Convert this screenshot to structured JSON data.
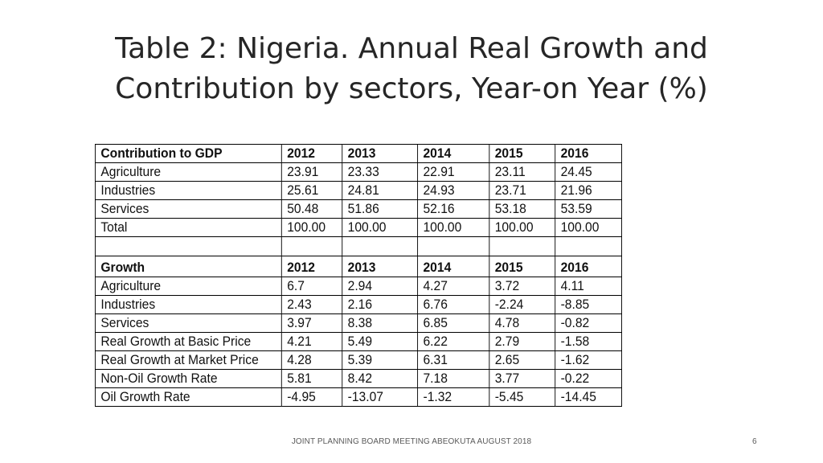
{
  "title": {
    "line1": "Table 2: Nigeria. Annual Real Growth and",
    "line2": "Contribution by sectors, Year-on Year (%)"
  },
  "contribution": {
    "header": [
      "Contribution to GDP",
      "2012",
      "2013",
      "2014",
      "2015",
      "2016"
    ],
    "rows": [
      [
        "Agriculture",
        "23.91",
        "23.33",
        "22.91",
        "23.11",
        "24.45"
      ],
      [
        "Industries",
        "25.61",
        "24.81",
        "24.93",
        "23.71",
        "21.96"
      ],
      [
        "Services",
        "50.48",
        "51.86",
        "52.16",
        "53.18",
        "53.59"
      ],
      [
        "Total",
        "100.00",
        "100.00",
        "100.00",
        "100.00",
        "100.00"
      ]
    ]
  },
  "growth": {
    "header": [
      "Growth",
      "2012",
      "2013",
      "2014",
      "2015",
      "2016"
    ],
    "rows": [
      [
        "Agriculture",
        "6.7",
        "2.94",
        "4.27",
        "3.72",
        "4.11"
      ],
      [
        "Industries",
        "2.43",
        "2.16",
        "6.76",
        "-2.24",
        "-8.85"
      ],
      [
        "Services",
        "3.97",
        "8.38",
        "6.85",
        "4.78",
        "-0.82"
      ],
      [
        "Real Growth at Basic Price",
        "4.21",
        "5.49",
        "6.22",
        "2.79",
        "-1.58"
      ],
      [
        "Real Growth at Market Price",
        "4.28",
        "5.39",
        "6.31",
        "2.65",
        "-1.62"
      ],
      [
        "Non-Oil Growth Rate",
        "5.81",
        "8.42",
        "7.18",
        "3.77",
        "-0.22"
      ],
      [
        "Oil Growth Rate",
        "-4.95",
        "-13.07",
        "-1.32",
        "-5.45",
        "-14.45"
      ]
    ]
  },
  "footer": {
    "text": "JOINT PLANNING BOARD MEETING ABEOKUTA AUGUST 2018",
    "page_number": "6"
  }
}
